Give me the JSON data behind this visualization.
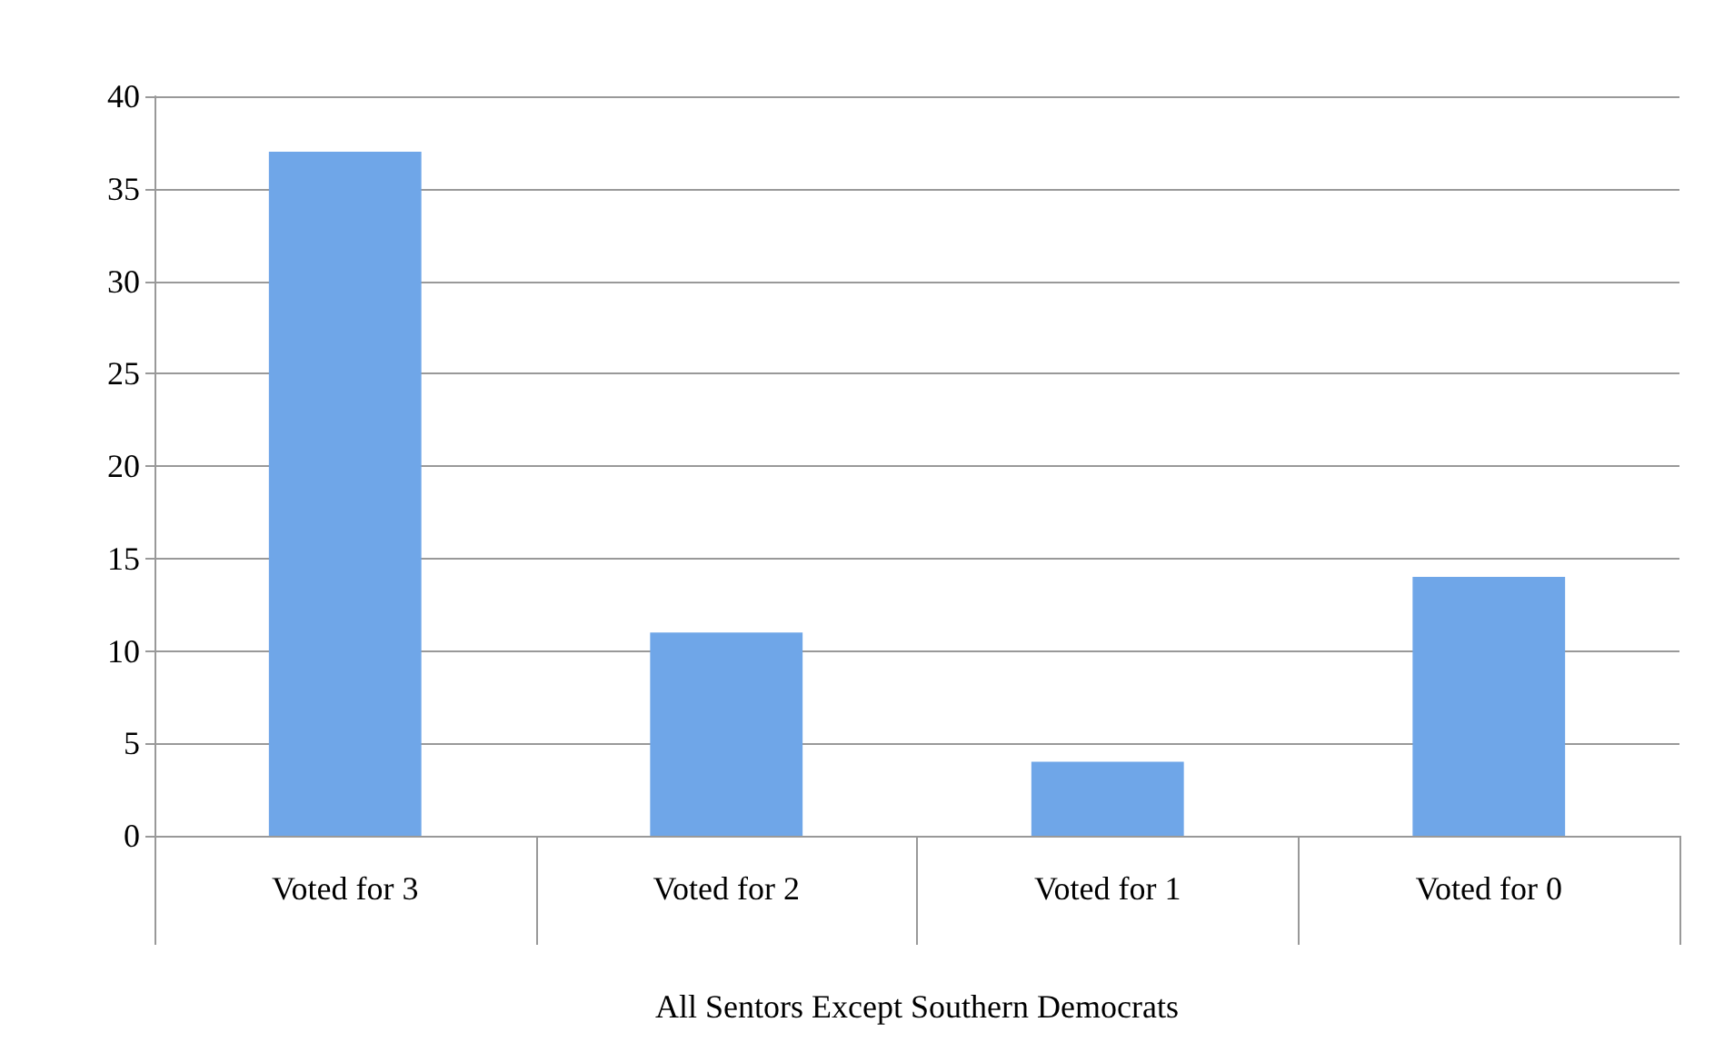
{
  "chart_data": {
    "type": "bar",
    "xlabel": "All Sentors Except Southern Democrats",
    "categories": [
      "Voted for 3",
      "Voted for 2",
      "Voted for 1",
      "Voted for 0"
    ],
    "values": [
      37,
      11,
      4,
      14
    ],
    "color": "#6fa6e8",
    "ylim": [
      0,
      40
    ],
    "yticks": [
      0,
      5,
      10,
      15,
      20,
      25,
      30,
      35,
      40
    ],
    "grid": "y"
  }
}
